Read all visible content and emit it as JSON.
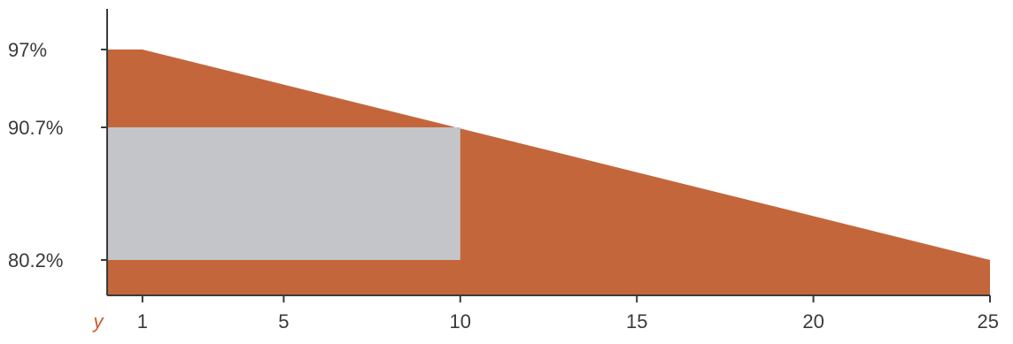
{
  "chart_data": {
    "type": "area",
    "x_axis": {
      "variable_label": "y",
      "ticks": [
        1,
        5,
        10,
        15,
        20,
        25
      ],
      "range": [
        0,
        25
      ]
    },
    "y_axis": {
      "tick_labels": [
        "97%",
        "90.7%",
        "80.2%"
      ],
      "tick_values": [
        97,
        90.7,
        80.2
      ]
    },
    "series": [
      {
        "kind": "area",
        "points": [
          {
            "x": 0,
            "y": 97
          },
          {
            "x": 1,
            "y": 97
          },
          {
            "x": 25,
            "y": 80.2
          }
        ],
        "color": "#c4663b"
      }
    ],
    "highlight": {
      "kind": "rectangle",
      "x_range": [
        0,
        10
      ],
      "y_range": [
        80.2,
        90.7
      ],
      "color": "#c3c5c9"
    },
    "grid": false,
    "legend": "none"
  }
}
